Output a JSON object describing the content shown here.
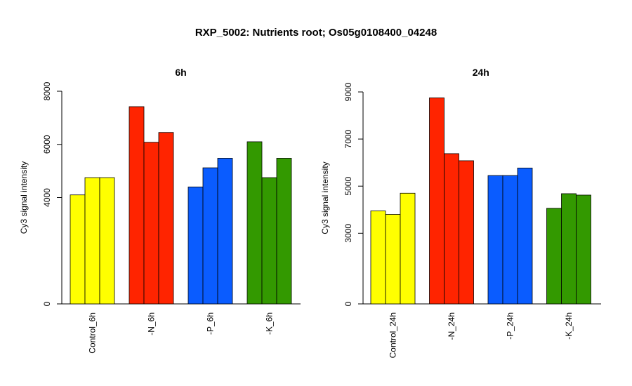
{
  "title": "RXP_5002: Nutrients root; Os05g0108400_04248",
  "chart_data": [
    {
      "type": "bar",
      "title": "6h",
      "ylabel": "Cy3 signal intensity",
      "ylim": [
        0,
        8000
      ],
      "yticks": [
        0,
        4000,
        6000,
        8000
      ],
      "categories": [
        "Control_6h",
        "-N_6h",
        "-P_6h",
        "-K_6h"
      ],
      "colors": [
        "#ffff00",
        "#ff2400",
        "#0a5cff",
        "#339900"
      ],
      "values": [
        [
          4100,
          4750,
          4750
        ],
        [
          7420,
          6080,
          6450
        ],
        [
          4400,
          5120,
          5480
        ],
        [
          6100,
          4750,
          5480
        ]
      ]
    },
    {
      "type": "bar",
      "title": "24h",
      "ylabel": "Cy3 signal intensity",
      "ylim": [
        0,
        9000
      ],
      "yticks": [
        0,
        3000,
        5000,
        7000,
        9000
      ],
      "categories": [
        "Control_24h",
        "-N_24h",
        "-P_24h",
        "-K_24h"
      ],
      "colors": [
        "#ffff00",
        "#ff2400",
        "#0a5cff",
        "#339900"
      ],
      "values": [
        [
          3950,
          3800,
          4700
        ],
        [
          8750,
          6380,
          6080
        ],
        [
          5450,
          5450,
          5770
        ],
        [
          4060,
          4680,
          4620
        ]
      ]
    }
  ]
}
